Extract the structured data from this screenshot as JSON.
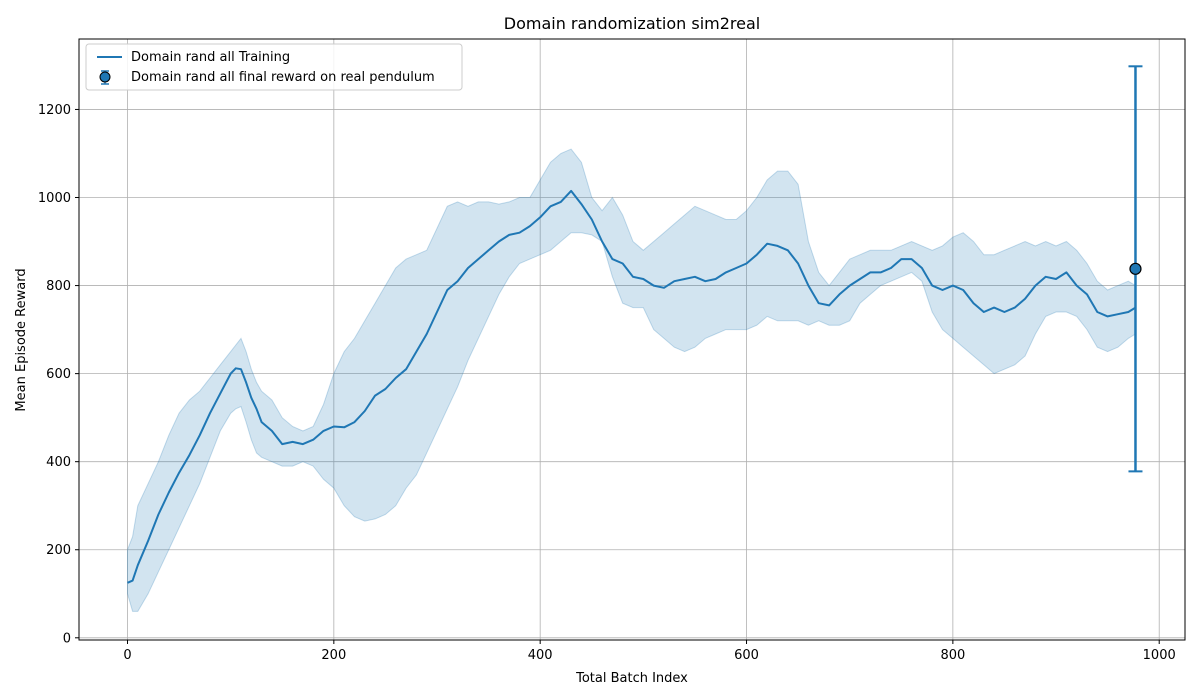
{
  "chart_data": {
    "type": "line",
    "title": "Domain randomization sim2real",
    "xlabel": "Total Batch Index",
    "ylabel": "Mean Episode Reward",
    "xlim": [
      -47,
      1025
    ],
    "ylim": [
      -5,
      1360
    ],
    "xticks": [
      0,
      200,
      400,
      600,
      800,
      1000
    ],
    "yticks": [
      0,
      200,
      400,
      600,
      800,
      1000,
      1200
    ],
    "grid": true,
    "legend_position": "top-left",
    "colors": {
      "line": "#1f77b4",
      "band": "#1f77b4",
      "point_edge": "#000000"
    },
    "series": [
      {
        "name": "Domain rand all Training",
        "x": [
          0,
          5,
          10,
          20,
          30,
          40,
          50,
          60,
          70,
          80,
          90,
          100,
          105,
          110,
          115,
          120,
          125,
          130,
          140,
          150,
          160,
          170,
          180,
          190,
          200,
          210,
          220,
          230,
          240,
          250,
          260,
          270,
          280,
          290,
          300,
          310,
          320,
          330,
          340,
          350,
          360,
          370,
          380,
          390,
          400,
          410,
          420,
          430,
          440,
          450,
          460,
          470,
          480,
          490,
          500,
          510,
          520,
          530,
          540,
          550,
          560,
          570,
          580,
          590,
          600,
          610,
          620,
          630,
          640,
          650,
          660,
          670,
          680,
          690,
          700,
          710,
          720,
          730,
          740,
          750,
          760,
          770,
          780,
          790,
          800,
          810,
          820,
          830,
          840,
          850,
          860,
          870,
          880,
          890,
          900,
          910,
          920,
          930,
          940,
          950,
          960,
          970,
          977
        ],
        "y": [
          125,
          130,
          165,
          220,
          280,
          330,
          375,
          415,
          460,
          510,
          555,
          600,
          612,
          610,
          580,
          545,
          520,
          490,
          470,
          440,
          445,
          440,
          450,
          470,
          480,
          478,
          490,
          515,
          550,
          565,
          590,
          610,
          650,
          690,
          740,
          790,
          810,
          840,
          860,
          880,
          900,
          915,
          920,
          935,
          955,
          980,
          990,
          1015,
          985,
          950,
          900,
          860,
          850,
          820,
          815,
          800,
          795,
          810,
          815,
          820,
          810,
          815,
          830,
          840,
          850,
          870,
          895,
          890,
          880,
          850,
          800,
          760,
          755,
          780,
          800,
          815,
          830,
          830,
          840,
          860,
          860,
          840,
          800,
          790,
          800,
          790,
          760,
          740,
          750,
          740,
          750,
          770,
          800,
          820,
          815,
          830,
          800,
          780,
          740,
          730,
          735,
          740,
          750
        ],
        "lower": [
          100,
          60,
          60,
          100,
          150,
          200,
          250,
          300,
          350,
          410,
          470,
          510,
          520,
          525,
          490,
          450,
          420,
          410,
          400,
          390,
          390,
          400,
          390,
          360,
          340,
          300,
          275,
          265,
          270,
          280,
          300,
          340,
          370,
          420,
          470,
          520,
          570,
          630,
          680,
          730,
          780,
          820,
          850,
          860,
          870,
          880,
          900,
          920,
          920,
          915,
          900,
          820,
          760,
          750,
          750,
          700,
          680,
          660,
          650,
          660,
          680,
          690,
          700,
          700,
          700,
          710,
          730,
          720,
          720,
          720,
          710,
          720,
          710,
          710,
          720,
          760,
          780,
          800,
          810,
          820,
          830,
          810,
          740,
          700,
          680,
          660,
          640,
          620,
          600,
          610,
          620,
          640,
          690,
          730,
          740,
          740,
          730,
          700,
          660,
          650,
          660,
          680,
          690
        ],
        "upper": [
          200,
          230,
          300,
          350,
          400,
          460,
          510,
          540,
          560,
          590,
          620,
          650,
          665,
          680,
          650,
          610,
          580,
          560,
          540,
          500,
          480,
          470,
          480,
          530,
          600,
          650,
          680,
          720,
          760,
          800,
          840,
          860,
          870,
          880,
          930,
          980,
          990,
          980,
          990,
          990,
          985,
          990,
          1000,
          1000,
          1040,
          1080,
          1100,
          1110,
          1080,
          1000,
          970,
          1000,
          960,
          900,
          880,
          900,
          920,
          940,
          960,
          980,
          970,
          960,
          950,
          950,
          970,
          1000,
          1040,
          1060,
          1060,
          1030,
          900,
          830,
          800,
          830,
          860,
          870,
          880,
          880,
          880,
          890,
          900,
          890,
          880,
          890,
          910,
          920,
          900,
          870,
          870,
          880,
          890,
          900,
          890,
          900,
          890,
          900,
          880,
          850,
          810,
          790,
          800,
          810,
          800
        ]
      }
    ],
    "point": {
      "name": "Domain rand all final reward on real pendulum",
      "x": 977,
      "y": 838,
      "err_low": 378,
      "err_high": 1298
    }
  }
}
